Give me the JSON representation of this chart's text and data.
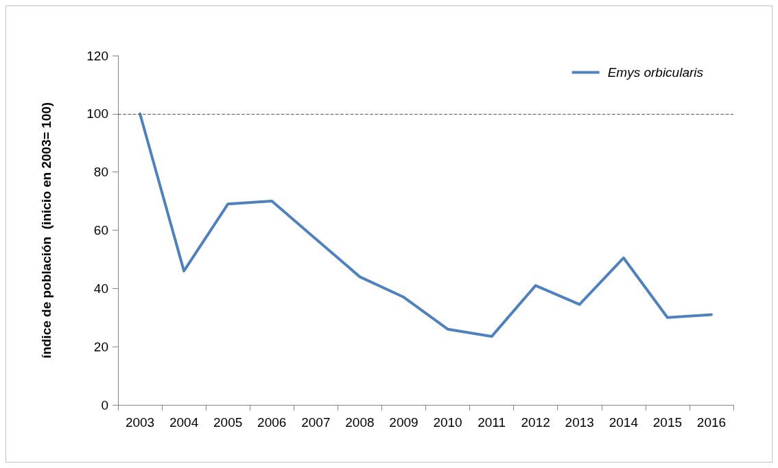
{
  "chart_data": {
    "type": "line",
    "ylabel": "índice de población  (inicio en 2003= 100)",
    "categories": [
      "2003",
      "2004",
      "2005",
      "2006",
      "2007",
      "2008",
      "2009",
      "2010",
      "2011",
      "2012",
      "2013",
      "2014",
      "2015",
      "2016"
    ],
    "series": [
      {
        "name": "Emys orbicularis",
        "color": "#4f81bd",
        "values": [
          100,
          46,
          69,
          70,
          57,
          44,
          37,
          26,
          23.5,
          41,
          34.5,
          50.5,
          30,
          31
        ]
      }
    ],
    "ylim": [
      0,
      120
    ],
    "yticks": [
      0,
      20,
      40,
      60,
      80,
      100,
      120
    ],
    "grid": false,
    "legend": "top right",
    "marker": "none",
    "line_style": "solid",
    "ref_lines": [
      {
        "axis": "y",
        "value": 100,
        "color": "#555555",
        "line_style": "dashed"
      }
    ]
  }
}
